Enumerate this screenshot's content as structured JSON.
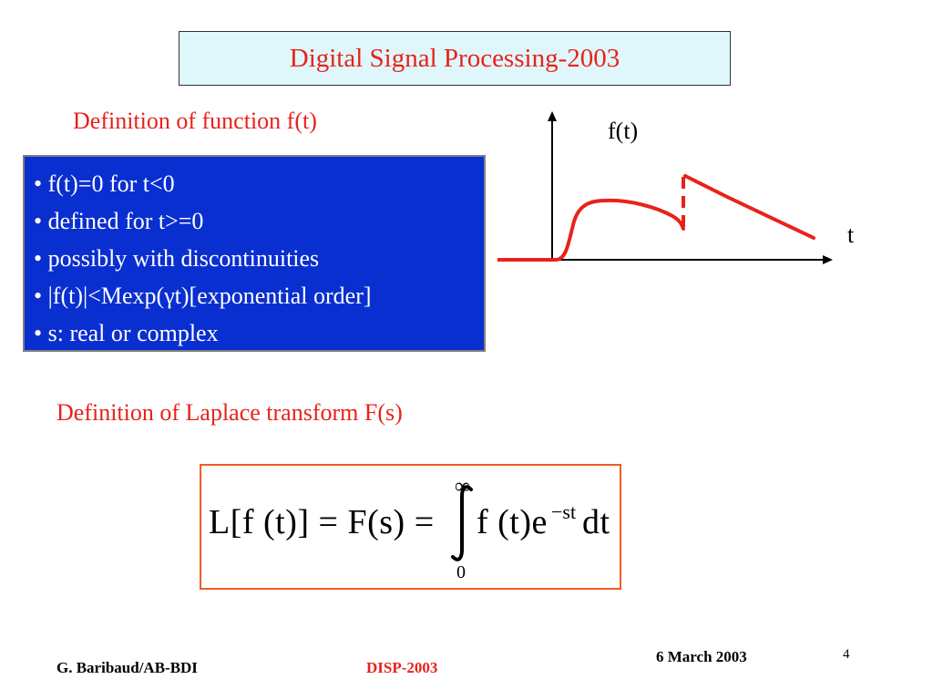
{
  "slide": {
    "title": "Digital Signal Processing-2003",
    "function_heading": "Definition of function f(t)",
    "bullets": [
      "• f(t)=0 for t<0",
      "• defined for t>=0",
      "• possibly with discontinuities",
      "• |f(t)|<Mexp(γt)[exponential order]",
      "• s: real or complex"
    ],
    "graph": {
      "y_label": "f(t)",
      "x_label": "t"
    },
    "laplace_heading": "Definition of Laplace transform F(s)",
    "formula": {
      "lhs": "L[f (t)] = F(s) = ",
      "integrand_base": "f (t)e",
      "exponent": "−st",
      "differential": "dt",
      "upper_limit": "∞",
      "lower_limit": "0"
    }
  },
  "footer": {
    "author": "G. Baribaud/AB-BDI",
    "course": "DISP-2003",
    "date": "6 March 2003",
    "page": "4"
  },
  "colors": {
    "title_text": "#e8221a",
    "title_bg": "#dff7fb",
    "bullet_bg": "#0a2fd0",
    "curve": "#e8221a",
    "formula_border": "#f05a28",
    "course_text": "#e8221a"
  }
}
